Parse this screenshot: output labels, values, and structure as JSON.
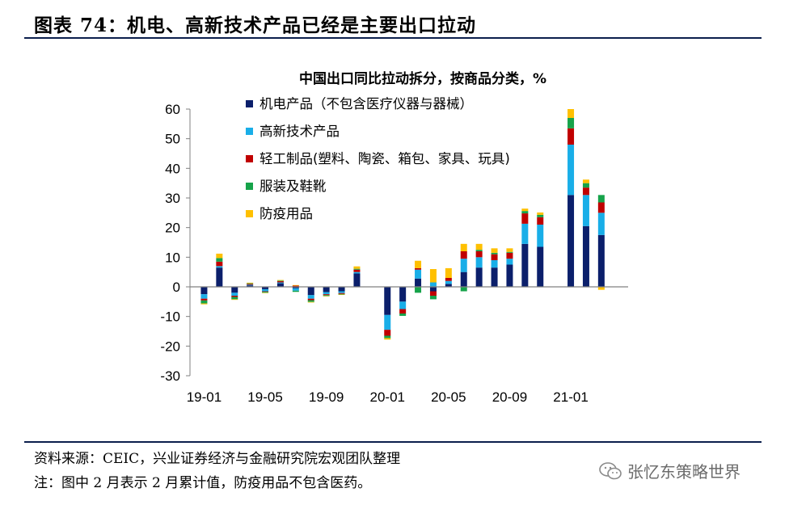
{
  "header": {
    "title": "图表 74：机电、高新技术产品已经是主要出口拉动"
  },
  "footer": {
    "source": "资料来源：CEIC，兴业证券经济与金融研究院宏观团队整理",
    "note": "注：图中 2 月表示 2 月累计值，防疫用品不包含医药。"
  },
  "watermark": {
    "text": "张忆东策略世界",
    "icon": "wechat-icon"
  },
  "colors": {
    "electro": "#0b1f6b",
    "hightech": "#19aee8",
    "light": "#c00000",
    "apparel": "#16a34a",
    "epidemic": "#ffc000"
  },
  "chart_data": {
    "type": "stacked-bar",
    "title": "中国出口同比拉动拆分，按商品分类，%",
    "ylim": [
      -30,
      60
    ],
    "yticks": [
      -30,
      -20,
      -10,
      0,
      10,
      20,
      30,
      40,
      50,
      60
    ],
    "categories": [
      "19-01",
      "19-02",
      "19-03",
      "19-04",
      "19-05",
      "19-06",
      "19-07",
      "19-08",
      "19-09",
      "19-10",
      "19-11",
      "19-12",
      "20-01",
      "20-02",
      "20-03",
      "20-04",
      "20-05",
      "20-06",
      "20-07",
      "20-08",
      "20-09",
      "20-10",
      "20-11",
      "20-12",
      "21-01",
      "21-02",
      "21-03",
      "21-04"
    ],
    "xtick_labels": [
      "19-01",
      "19-05",
      "19-09",
      "20-01",
      "20-05",
      "20-09",
      "21-01"
    ],
    "series": [
      {
        "name": "机电产品（不包含医疗仪器与器械）",
        "color": "#0b1f6b",
        "values": [
          -2.5,
          6.5,
          -2.0,
          0.5,
          -0.8,
          1.2,
          -0.5,
          -2.8,
          -1.8,
          -1.5,
          4.5,
          null,
          -9.5,
          -5.0,
          2.8,
          -1.5,
          1.0,
          5.0,
          6.5,
          6.5,
          7.5,
          14.5,
          13.5,
          null,
          31.0,
          20.5,
          17.5,
          0
        ]
      },
      {
        "name": "高新技术产品",
        "color": "#19aee8",
        "values": [
          -1.5,
          0.5,
          -1.0,
          0.2,
          -0.7,
          0.3,
          -0.8,
          -1.2,
          -0.7,
          -0.6,
          0.5,
          null,
          -5.0,
          -2.5,
          3.0,
          1.5,
          1.0,
          4.5,
          3.5,
          2.5,
          2.0,
          6.8,
          7.5,
          null,
          17.0,
          10.5,
          7.5,
          0
        ]
      },
      {
        "name": "轻工制品(塑料、陶瓷、箱包、家具、玩具)",
        "color": "#c00000",
        "values": [
          -0.6,
          1.5,
          -0.4,
          0.3,
          -0.2,
          0.4,
          0.4,
          -0.5,
          -0.3,
          -0.3,
          0.8,
          null,
          -2.0,
          -1.5,
          0.5,
          -1.5,
          1.0,
          2.5,
          2.0,
          2.0,
          2.0,
          3.5,
          2.5,
          null,
          5.5,
          2.5,
          3.5,
          0
        ]
      },
      {
        "name": "服装及鞋靴",
        "color": "#16a34a",
        "values": [
          -1.0,
          1.2,
          -0.8,
          0.2,
          -0.3,
          0.2,
          -0.4,
          -0.6,
          -0.3,
          -0.2,
          0.3,
          null,
          -0.8,
          -0.8,
          -2.0,
          -1.2,
          0.0,
          -1.5,
          0.5,
          0.5,
          0.3,
          0.8,
          0.8,
          null,
          3.5,
          1.5,
          2.5,
          0
        ]
      },
      {
        "name": "防疫用品",
        "color": "#ffc000",
        "values": [
          -0.3,
          1.5,
          -0.2,
          0.2,
          -0.1,
          0.2,
          0.2,
          -0.2,
          -0.1,
          -0.1,
          0.8,
          null,
          -0.5,
          0.0,
          2.5,
          4.5,
          3.3,
          2.5,
          2.0,
          1.5,
          1.2,
          0.8,
          0.8,
          null,
          3.0,
          1.2,
          -1.0,
          0
        ]
      }
    ]
  }
}
